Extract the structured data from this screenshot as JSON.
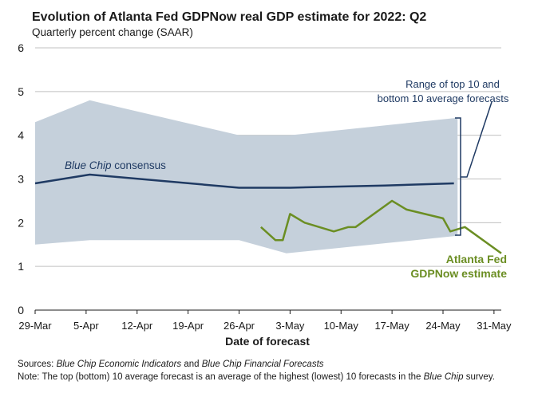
{
  "chart_data": {
    "type": "line",
    "title": "Evolution of Atlanta Fed GDPNow real GDP estimate for 2022: Q2",
    "subtitle": "Quarterly percent change (SAAR)",
    "xlabel": "Date of forecast",
    "ylabel": "",
    "ylim": [
      0,
      6
    ],
    "yticks": [
      "0",
      "1",
      "2",
      "3",
      "4",
      "5",
      "6"
    ],
    "xlim_days": [
      0,
      64
    ],
    "xticks": [
      {
        "label": "29-Mar",
        "day": 0
      },
      {
        "label": "5-Apr",
        "day": 7
      },
      {
        "label": "12-Apr",
        "day": 14
      },
      {
        "label": "19-Apr",
        "day": 21
      },
      {
        "label": "26-Apr",
        "day": 28
      },
      {
        "label": "3-May",
        "day": 35
      },
      {
        "label": "10-May",
        "day": 42
      },
      {
        "label": "17-May",
        "day": 49
      },
      {
        "label": "24-May",
        "day": 56
      },
      {
        "label": "31-May",
        "day": 63
      }
    ],
    "grid": true,
    "band": {
      "name": "Range of top 10 and bottom 10 average forecasts",
      "upper": [
        [
          0,
          4.3
        ],
        [
          7.5,
          4.8
        ],
        [
          28,
          4.0
        ],
        [
          35,
          4.0
        ],
        [
          58,
          4.4
        ]
      ],
      "lower": [
        [
          0,
          1.5
        ],
        [
          7.5,
          1.6
        ],
        [
          28,
          1.6
        ],
        [
          34.5,
          1.3
        ],
        [
          58,
          1.7
        ]
      ]
    },
    "series": [
      {
        "name": "Blue Chip consensus",
        "points": [
          [
            0,
            2.9
          ],
          [
            7.5,
            3.1
          ],
          [
            28,
            2.8
          ],
          [
            35,
            2.8
          ],
          [
            48,
            2.85
          ],
          [
            57.5,
            2.9
          ]
        ]
      },
      {
        "name": "Atlanta Fed GDPNow estimate",
        "points": [
          [
            31,
            1.9
          ],
          [
            33,
            1.6
          ],
          [
            34,
            1.6
          ],
          [
            35,
            2.2
          ],
          [
            37,
            2.0
          ],
          [
            41,
            1.8
          ],
          [
            43,
            1.9
          ],
          [
            44,
            1.9
          ],
          [
            49,
            2.5
          ],
          [
            51,
            2.3
          ],
          [
            56,
            2.1
          ],
          [
            57,
            1.8
          ],
          [
            59,
            1.9
          ],
          [
            64,
            1.3
          ]
        ]
      }
    ],
    "annotations": {
      "band_line1": "Range of top 10 and",
      "band_line2": "bottom 10 average forecasts",
      "consensus_italic": "Blue Chip",
      "consensus_rest": " consensus",
      "gdpnow_line1": "Atlanta Fed",
      "gdpnow_line2": "GDPNow estimate"
    },
    "colors": {
      "band": "#c5d0db",
      "consensus": "#1f3a63",
      "gdpnow": "#6b8e23",
      "grid": "#c0c0c0"
    }
  },
  "notes": {
    "sources_label": "Sources: ",
    "sources_src1": "Blue Chip Economic Indicators",
    "sources_and": " and ",
    "sources_src2": "Blue Chip Financial Forecasts",
    "note_label": "Note:",
    "note_text1": " The top (bottom) 10 average forecast is an average of the highest (lowest) 10 forecasts in the ",
    "note_italic": "Blue Chip",
    "note_text2": " survey."
  }
}
